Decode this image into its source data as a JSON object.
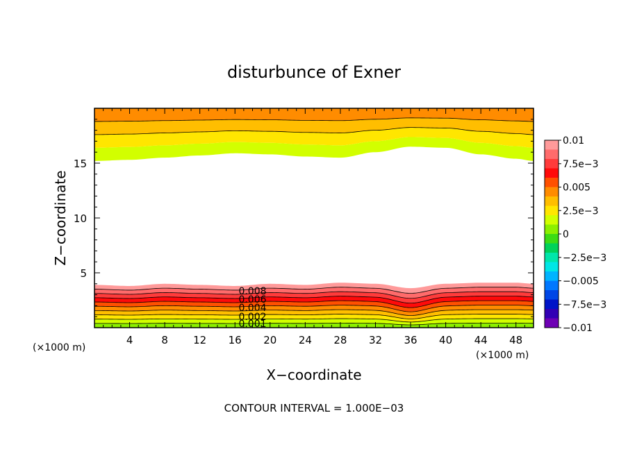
{
  "chart_data": {
    "type": "heatmap",
    "title": "disturbunce of Exner",
    "xlabel": "X−coordinate",
    "ylabel": "Z−coordinate",
    "x_unit": "(×1000 m)",
    "y_unit": "(×1000 m)",
    "xlim": [
      0,
      50
    ],
    "ylim": [
      0,
      20
    ],
    "x_ticks": [
      4,
      8,
      12,
      16,
      20,
      24,
      28,
      32,
      36,
      40,
      44,
      48
    ],
    "y_ticks": [
      5,
      10,
      15
    ],
    "footer": "CONTOUR INTERVAL = 1.000E−03",
    "contour_interval": 0.001,
    "colorbar": {
      "min": -0.01,
      "max": 0.01,
      "tick_labels": [
        "0.01",
        "7.5e−3",
        "0.005",
        "2.5e−3",
        "0",
        "−2.5e−3",
        "−0.005",
        "−7.5e−3",
        "−0.01"
      ],
      "tick_values": [
        0.01,
        0.0075,
        0.005,
        0.0025,
        0,
        -0.0025,
        -0.005,
        -0.0075,
        -0.01
      ],
      "colors_top_to_bottom": [
        "#ff9a9a",
        "#ff6b6b",
        "#ff3b3b",
        "#ff0a0a",
        "#ff5000",
        "#ff8c00",
        "#ffbe00",
        "#ffe600",
        "#d2ff00",
        "#8cf000",
        "#3cdc14",
        "#00d25a",
        "#00e6aa",
        "#00e6e6",
        "#00b4ff",
        "#0078ff",
        "#0046e6",
        "#0014c8",
        "#3200b4",
        "#6e00b4"
      ]
    },
    "contour_labels": [
      "0.008",
      "0.006",
      "0.004",
      "0.002",
      "0.001"
    ],
    "contour_label_x": 18,
    "bottom_layer": {
      "description_levels": [
        0.0095,
        0.0085,
        0.0075,
        0.0065,
        0.0055,
        0.0045,
        0.0035,
        0.0025,
        0.0015,
        0.0005
      ],
      "top_height_profile": [
        [
          0,
          3.9
        ],
        [
          4,
          3.8
        ],
        [
          8,
          4.0
        ],
        [
          12,
          3.9
        ],
        [
          16,
          3.8
        ],
        [
          20,
          4.0
        ],
        [
          24,
          3.9
        ],
        [
          28,
          4.1
        ],
        [
          32,
          4.0
        ],
        [
          36,
          3.6
        ],
        [
          40,
          4.0
        ],
        [
          44,
          4.1
        ],
        [
          48,
          4.1
        ],
        [
          50,
          4.0
        ]
      ],
      "dip_x": 36
    },
    "top_layer": {
      "levels": [
        0.0015,
        0.0025,
        0.0035,
        0.0045
      ],
      "base_height_profile": [
        [
          0,
          15.2
        ],
        [
          4,
          15.3
        ],
        [
          8,
          15.5
        ],
        [
          12,
          15.7
        ],
        [
          16,
          15.9
        ],
        [
          20,
          15.8
        ],
        [
          24,
          15.6
        ],
        [
          28,
          15.5
        ],
        [
          32,
          16.0
        ],
        [
          36,
          16.5
        ],
        [
          40,
          16.4
        ],
        [
          44,
          15.8
        ],
        [
          48,
          15.4
        ],
        [
          50,
          15.2
        ]
      ]
    }
  }
}
